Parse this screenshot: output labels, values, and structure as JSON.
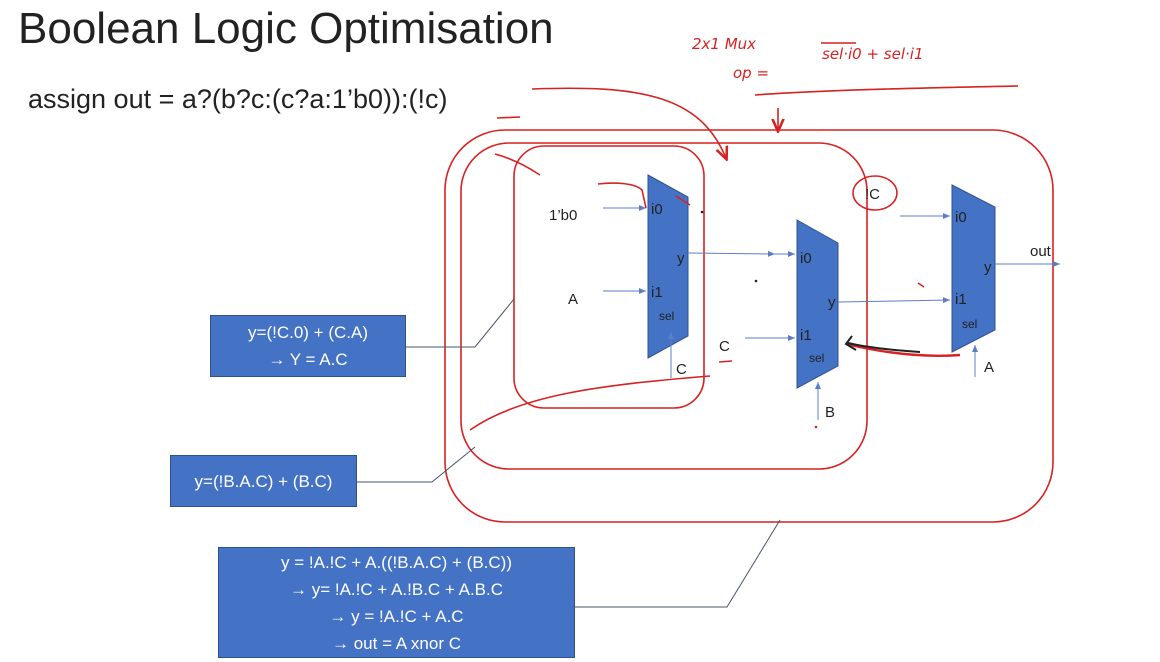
{
  "title": "Boolean Logic Optimisation",
  "assign_statement": "assign out = a?(b?c:(c?a:1’b0)):(!c)",
  "annotations": {
    "mux_label": "2x1 Mux",
    "op_label": "op =",
    "op_expr": "sel·i0 + sel·i1",
    "not_c": "!C"
  },
  "mux1": {
    "i0": "i0",
    "i1": "i1",
    "y": "y",
    "sel": "sel",
    "in0": "1’b0",
    "in1": "A",
    "sel_in": "C"
  },
  "mux2": {
    "i0": "i0",
    "i1": "i1",
    "y": "y",
    "sel": "sel",
    "in1": "C",
    "sel_in": "B"
  },
  "mux3": {
    "i0": "i0",
    "i1": "i1",
    "y": "y",
    "sel": "sel",
    "sel_in": "A",
    "out": "out"
  },
  "box1": {
    "lines": [
      "y=(!C.0) + (C.A)",
      "→ Y = A.C"
    ]
  },
  "box2": {
    "lines": [
      "y=(!B.A.C) + (B.C)"
    ]
  },
  "box3": {
    "lines": [
      "y = !A.!C + A.((!B.A.C) + (B.C))",
      "→ y= !A.!C + A.!B.C + A.B.C",
      "→ y = !A.!C + A.C",
      "→ out = A xnor C"
    ]
  },
  "colors": {
    "mux_fill": "#4472c4",
    "ink": "#d62222",
    "wire": "#5b7fc4"
  }
}
